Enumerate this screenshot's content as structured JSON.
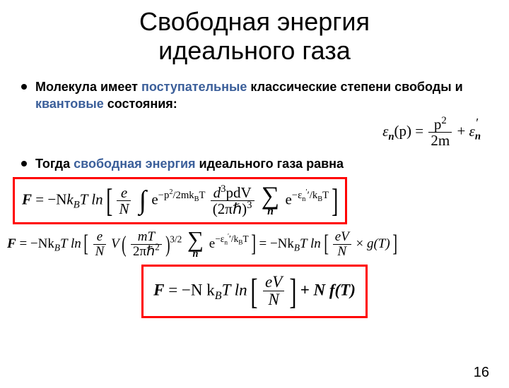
{
  "title_line1": "Свободная энергия",
  "title_line2": "идеального газа",
  "bullet1": {
    "t1": "Молекула имеет ",
    "t2": "поступательные",
    "t3": " классические степени свободы и ",
    "t4": "квантовые",
    "t5": " состояния:"
  },
  "bullet2": {
    "t1": "Тогда ",
    "t2": "свободная энергия",
    "t3": " идеального газа равна"
  },
  "eq1": {
    "lhs_eps": "ε",
    "lhs_sub": "n",
    "lhs_arg": "(p) = ",
    "frac_num": "p",
    "frac_num_sup": "2",
    "frac_den": "2m",
    "plus": " + ",
    "eps2": "ε",
    "eps2_sub": "n",
    "eps2_prime": "′"
  },
  "eq2": {
    "F": "F",
    "eq": " = −N",
    "k": "k",
    "B": "B",
    "T": "T ln",
    "e": "e",
    "N": "N",
    "exp1": "e",
    "exp1_pow_a": "−p",
    "exp1_pow_b": "2",
    "exp1_pow_c": "/2mk",
    "exp1_pow_d": "B",
    "exp1_pow_e": "T",
    "dnum": "d",
    "dnum_sup": "3",
    "dnum_tail": "pdV",
    "dden_a": "(2πℏ)",
    "dden_b": "3",
    "sum_sub": "n",
    "exp2": "e",
    "exp2_pow_a": "−ε",
    "exp2_pow_b": "n",
    "exp2_pow_c": "′/k",
    "exp2_pow_d": "B",
    "exp2_pow_e": "T"
  },
  "eq3": {
    "F": "F",
    "eq": " = −Nk",
    "B": "B",
    "T": "T ln",
    "e": "e",
    "N": "N",
    "V": "V",
    "frac2_num": "mT",
    "frac2_den_a": "2πℏ",
    "frac2_den_b": "2",
    "pow32": "3/2",
    "sum_sub": "n",
    "exp": "e",
    "exp_pow_a": "−ε",
    "exp_pow_b": "n",
    "exp_pow_c": "′/k",
    "exp_pow_d": "B",
    "exp_pow_e": "T",
    "mid": " = −Nk",
    "B2": "B",
    "T2": "T ln",
    "eV": "eV",
    "N2": "N",
    "times": " × ",
    "g": "g(T)"
  },
  "eq4": {
    "F": "F",
    "eq": " = −N k",
    "B": "B",
    "T": "T ln",
    "eV": "eV",
    "N": "N",
    "plus": " + N f(T)"
  },
  "page_number": "16",
  "colors": {
    "accent_blue": "#3b5f9a",
    "box_red": "#ff0000",
    "background": "#ffffff",
    "text": "#000000"
  },
  "fonts": {
    "title_size_pt": 28,
    "body_size_pt": 14,
    "eq_size_pt": 16
  }
}
